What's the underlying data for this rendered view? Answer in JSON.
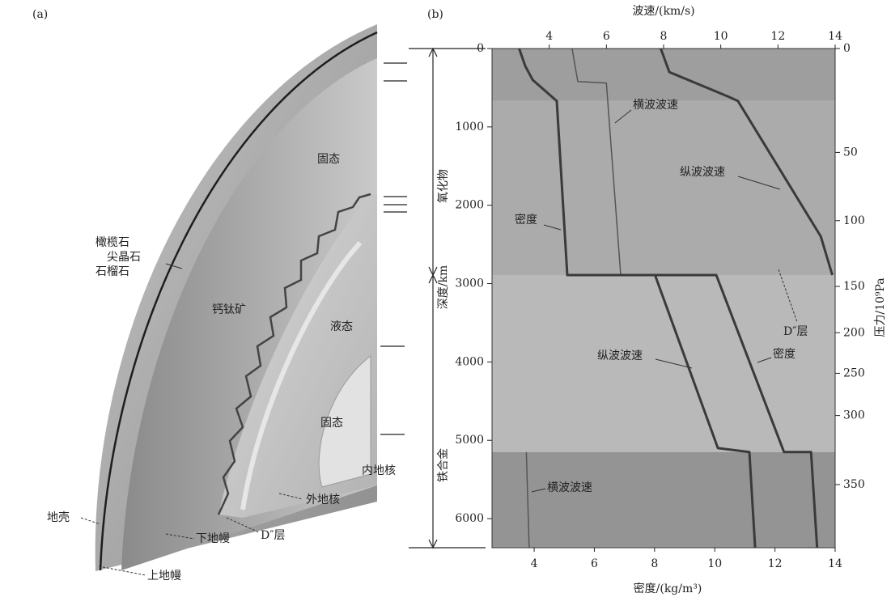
{
  "panel_a": {
    "label": "(a)",
    "labels": [
      "橄榄石",
      "尖晶石",
      "石榴石",
      "固态",
      "钙钛矿",
      "液态",
      "固态",
      "内地核",
      "外地核",
      "D″层",
      "下地幔",
      "上地幔",
      "地壳"
    ]
  },
  "chart_data": {
    "type": "line",
    "panel_label": "(b)",
    "x_label_top": "波速/(km/s)",
    "x_label_bottom": "密度/(kg/m³)",
    "y_label": "深度/km",
    "y2_label": "压力/10⁹Pa",
    "region_labels": [
      "氧化物",
      "铁合金"
    ],
    "ylim": [
      0,
      6371
    ],
    "yticks": [
      0,
      1000,
      2000,
      3000,
      4000,
      5000,
      6000
    ],
    "xlim_top": [
      2,
      14
    ],
    "xticks_top": [
      4,
      6,
      8,
      10,
      12,
      14
    ],
    "xlim_bottom": [
      2.6,
      14
    ],
    "xticks_bottom": [
      4,
      6,
      8,
      10,
      12,
      14
    ],
    "y2lim": [
      0,
      364
    ],
    "y2ticks": [
      0,
      50,
      100,
      150,
      200,
      250,
      300,
      350
    ],
    "y2_scale": {
      "depth": [
        0,
        1326,
        2197,
        3036,
        3627,
        4145,
        4684,
        5565,
        6371
      ],
      "pressure": [
        0,
        50,
        100,
        150,
        200,
        250,
        300,
        350,
        364
      ]
    },
    "bands": [
      {
        "depth": [
          0,
          670
        ],
        "color": "#9e9e9e"
      },
      {
        "depth": [
          670,
          2891
        ],
        "color": "#ababab"
      },
      {
        "depth": [
          2891,
          5150
        ],
        "color": "#b9b9b9"
      },
      {
        "depth": [
          5150,
          6371
        ],
        "color": "#949494"
      }
    ],
    "series": [
      {
        "name": "纵波波速",
        "axis": "top",
        "color": "#3a3a3a",
        "width": 3,
        "depth": [
          0,
          300,
          620,
          670,
          2400,
          2891,
          2891,
          2891,
          5100,
          5150,
          6371
        ],
        "values": [
          7.9,
          8.2,
          10.3,
          10.6,
          13.5,
          13.9,
          null,
          7.7,
          9.9,
          11.0,
          11.2
        ]
      },
      {
        "name": "横波波速",
        "axis": "top",
        "color": "#555555",
        "width": 1.5,
        "depth": [
          0,
          420,
          440,
          2891,
          2891,
          5150,
          6371
        ],
        "values": [
          4.8,
          5.0,
          6.0,
          6.5,
          null,
          3.2,
          3.3
        ]
      },
      {
        "name": "密度",
        "axis": "bottom",
        "color": "#3a3a3a",
        "width": 3,
        "depth": [
          0,
          220,
          400,
          670,
          2891,
          2891,
          5150,
          5150,
          6371
        ],
        "values": [
          3.5,
          3.7,
          3.95,
          4.75,
          5.1,
          10.05,
          12.3,
          13.2,
          13.4
        ]
      }
    ],
    "annotations": [
      "D″层"
    ]
  }
}
